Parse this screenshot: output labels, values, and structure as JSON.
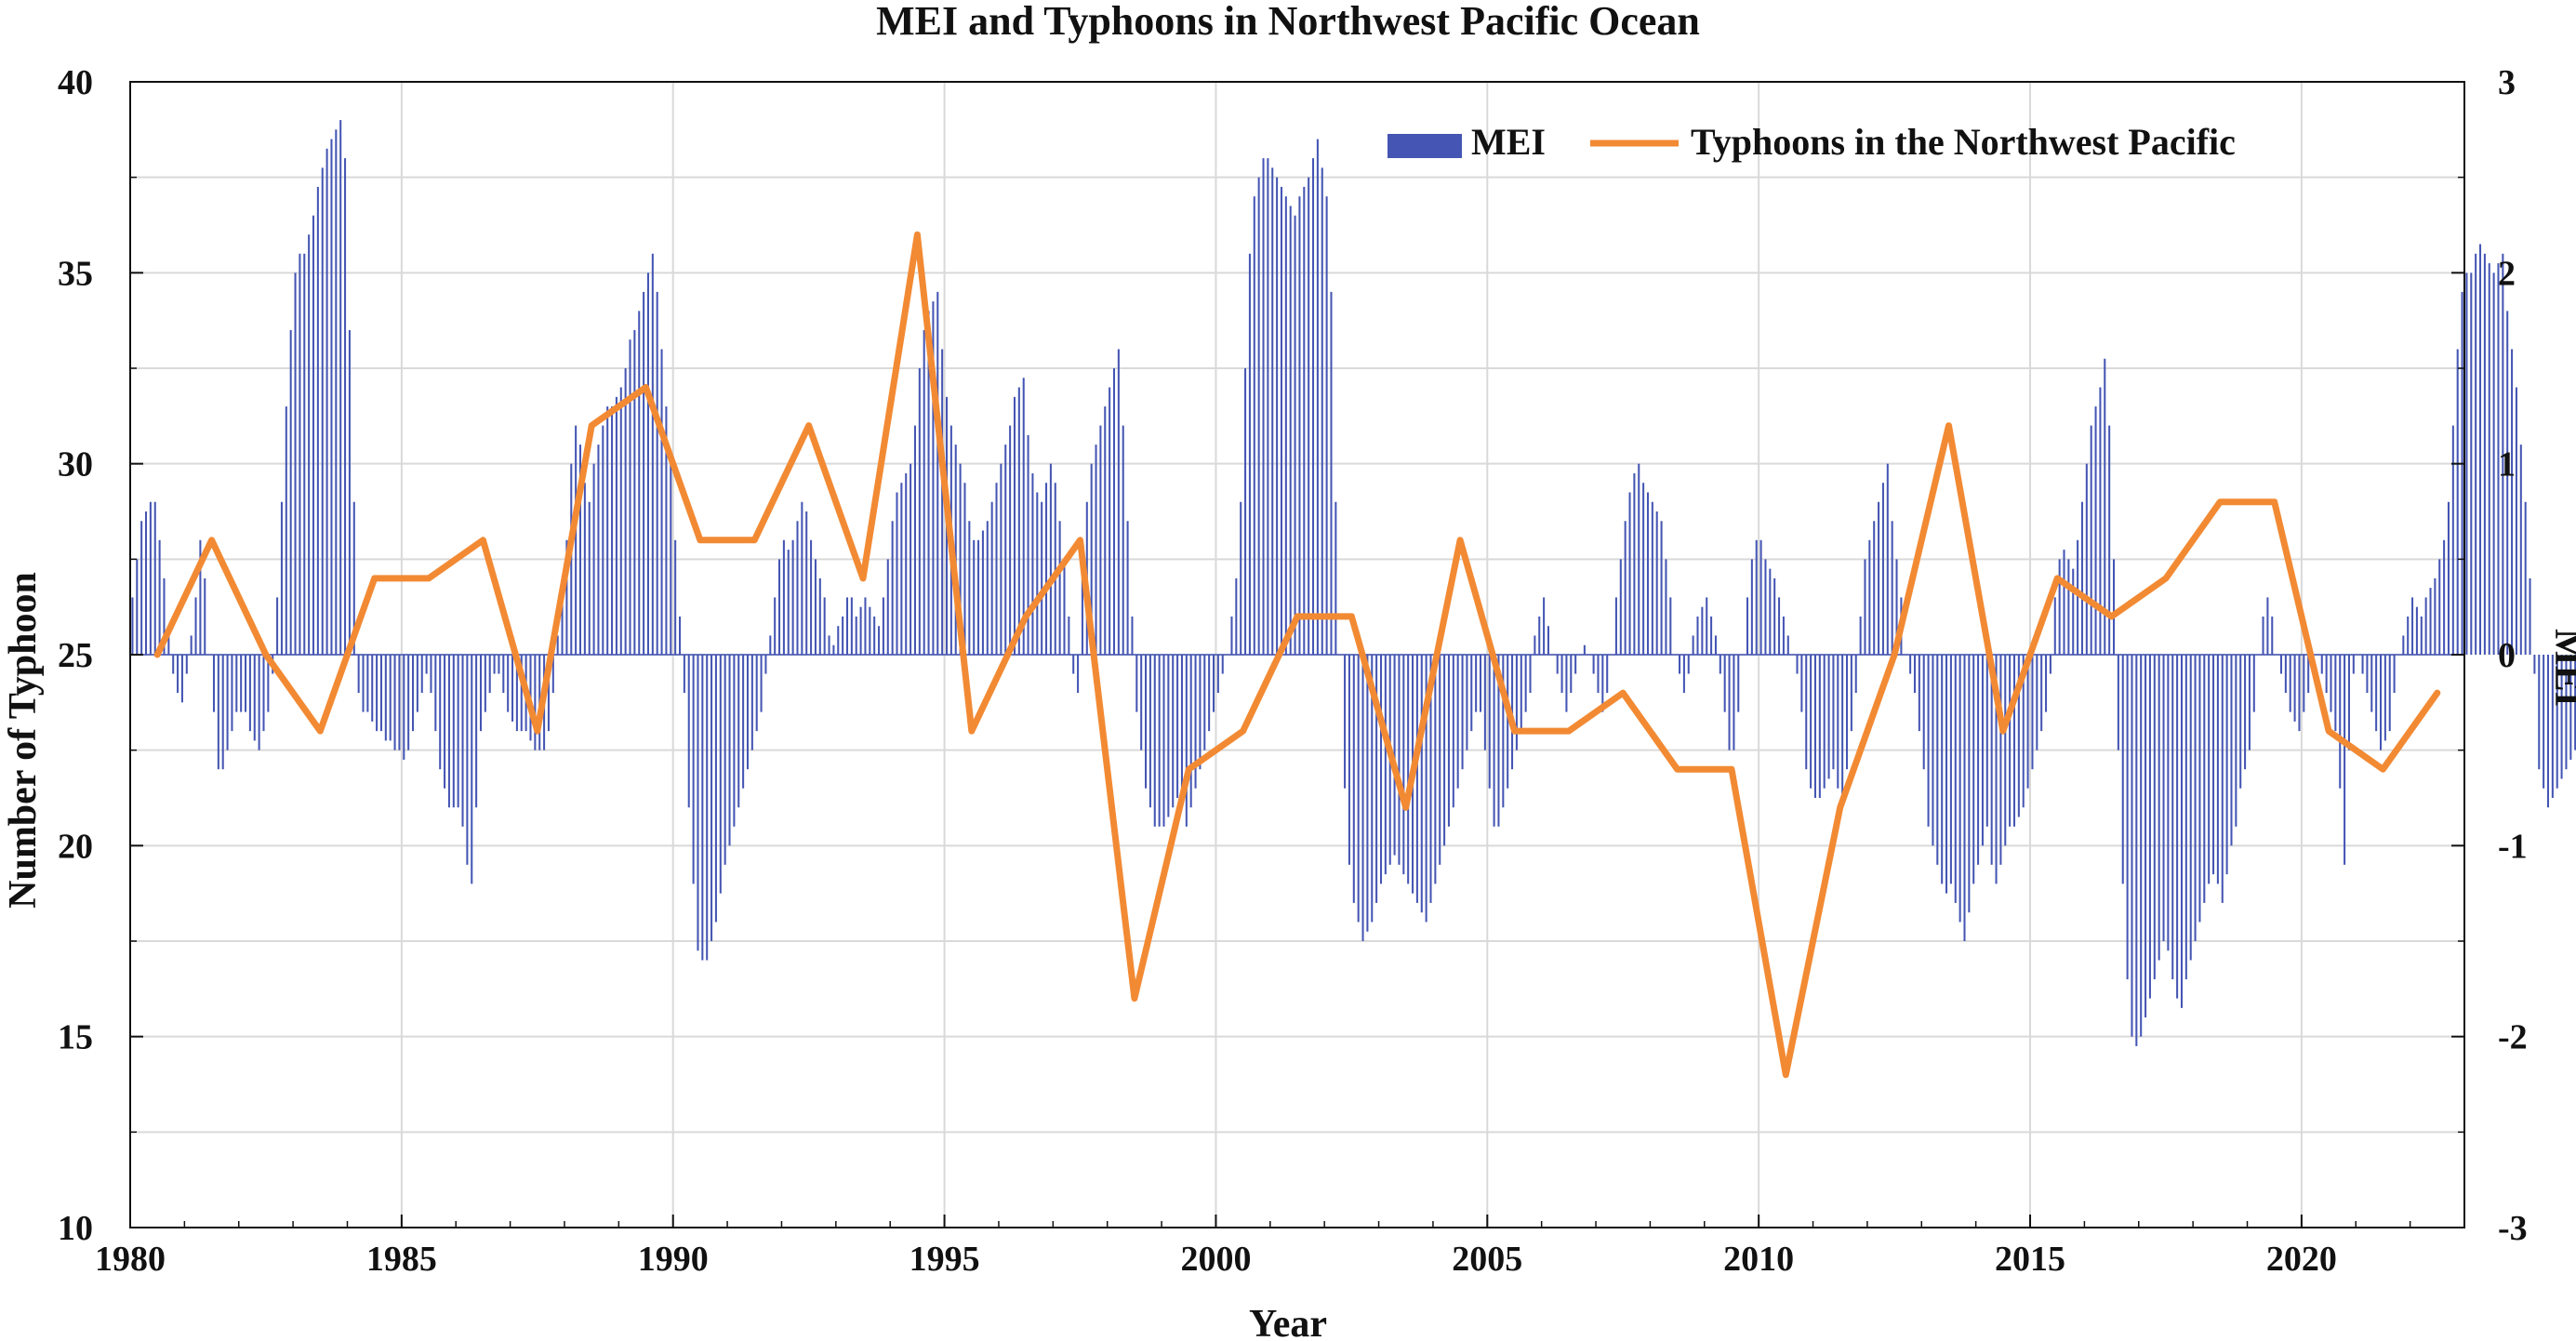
{
  "chart_data": {
    "type": "bar+line",
    "title": "MEI and Typhoons in Northwest Pacific Ocean",
    "xlabel": "Year",
    "ylabel_left": "Number of Typhoon",
    "ylabel_right": "MEI",
    "xlim": [
      1980,
      2023
    ],
    "ylim_left": [
      10,
      40
    ],
    "ylim_right": [
      -3,
      3
    ],
    "x_ticks": [
      "1980",
      "1985",
      "1990",
      "1995",
      "2000",
      "2005",
      "2010",
      "2015",
      "2020"
    ],
    "y_left_ticks": [
      "10",
      "15",
      "20",
      "25",
      "30",
      "35",
      "40"
    ],
    "y_right_ticks": [
      "-3",
      "-2",
      "-1",
      "0",
      "1",
      "2",
      "3"
    ],
    "grid": true,
    "legend_position": "top-right",
    "legend": [
      "MEI",
      "Typhoons in the Northwest Pacific"
    ],
    "colors": {
      "mei": "#4455b3",
      "typhoon": "#f28a34",
      "grid": "#d9d9d9",
      "axis": "#111111"
    },
    "series": [
      {
        "name": "Typhoons in the Northwest Pacific",
        "axis": "left",
        "type": "line",
        "x": [
          1980.5,
          1981.5,
          1982.5,
          1983.5,
          1984.5,
          1985.5,
          1986.5,
          1987.5,
          1988.5,
          1989.5,
          1990.5,
          1991.5,
          1992.5,
          1993.5,
          1994.5,
          1995.5,
          1996.5,
          1997.5,
          1998.5,
          1999.5,
          2000.5,
          2001.5,
          2002.5,
          2003.5,
          2004.5,
          2005.5,
          2006.5,
          2007.5,
          2008.5,
          2009.5,
          2010.5,
          2011.5,
          2012.5,
          2013.5,
          2014.5,
          2015.5,
          2016.5,
          2017.5,
          2018.5,
          2019.5,
          2020.5,
          2021.5,
          2022.5
        ],
        "values": [
          25,
          28,
          25,
          23,
          27,
          27,
          28,
          23,
          31,
          32,
          28,
          28,
          31,
          27,
          36,
          23,
          26,
          28,
          16,
          22,
          23,
          26,
          26,
          21,
          28,
          23,
          23,
          24,
          22,
          22,
          14,
          21,
          25,
          31,
          23,
          27,
          26,
          27,
          29,
          29,
          23,
          22,
          24
        ]
      },
      {
        "name": "MEI",
        "axis": "right",
        "type": "bar",
        "resolution": "monthly",
        "x_start": 1980.0,
        "values": [
          0.3,
          0.5,
          0.7,
          0.75,
          0.8,
          0.8,
          0.6,
          0.4,
          0.1,
          -0.1,
          -0.2,
          -0.25,
          -0.1,
          0.1,
          0.3,
          0.6,
          0.4,
          0.0,
          -0.3,
          -0.6,
          -0.6,
          -0.5,
          -0.4,
          -0.3,
          -0.3,
          -0.3,
          -0.4,
          -0.45,
          -0.5,
          -0.4,
          -0.3,
          -0.1,
          0.3,
          0.8,
          1.3,
          1.7,
          2.0,
          2.1,
          2.1,
          2.2,
          2.3,
          2.45,
          2.55,
          2.65,
          2.7,
          2.75,
          2.8,
          2.6,
          1.7,
          0.8,
          -0.2,
          -0.3,
          -0.3,
          -0.35,
          -0.4,
          -0.4,
          -0.45,
          -0.45,
          -0.5,
          -0.5,
          -0.55,
          -0.5,
          -0.4,
          -0.3,
          -0.2,
          -0.1,
          -0.2,
          -0.4,
          -0.6,
          -0.7,
          -0.8,
          -0.8,
          -0.8,
          -0.9,
          -1.1,
          -1.2,
          -0.8,
          -0.4,
          -0.3,
          -0.2,
          -0.1,
          -0.1,
          -0.2,
          -0.3,
          -0.35,
          -0.4,
          -0.4,
          -0.4,
          -0.45,
          -0.5,
          -0.5,
          -0.5,
          -0.4,
          -0.2,
          0.1,
          0.3,
          0.6,
          1.0,
          1.2,
          1.1,
          0.9,
          0.8,
          1.0,
          1.1,
          1.2,
          1.3,
          1.3,
          1.35,
          1.4,
          1.5,
          1.65,
          1.7,
          1.8,
          1.9,
          2.0,
          2.1,
          1.9,
          1.6,
          1.3,
          1.0,
          0.6,
          0.2,
          -0.2,
          -0.8,
          -1.2,
          -1.55,
          -1.6,
          -1.6,
          -1.5,
          -1.4,
          -1.25,
          -1.1,
          -1.0,
          -0.9,
          -0.8,
          -0.7,
          -0.6,
          -0.5,
          -0.4,
          -0.3,
          -0.1,
          0.1,
          0.3,
          0.5,
          0.6,
          0.55,
          0.6,
          0.7,
          0.8,
          0.75,
          0.6,
          0.5,
          0.4,
          0.3,
          0.1,
          0.05,
          0.15,
          0.2,
          0.3,
          0.3,
          0.2,
          0.25,
          0.3,
          0.25,
          0.2,
          0.15,
          0.3,
          0.5,
          0.7,
          0.85,
          0.9,
          0.95,
          1.0,
          1.2,
          1.5,
          1.7,
          1.8,
          1.85,
          1.9,
          1.6,
          1.35,
          1.2,
          1.1,
          1.0,
          0.9,
          0.7,
          0.6,
          0.6,
          0.65,
          0.7,
          0.8,
          0.9,
          1.0,
          1.1,
          1.2,
          1.35,
          1.4,
          1.45,
          1.15,
          0.95,
          0.85,
          0.8,
          0.9,
          1.0,
          0.9,
          0.7,
          0.5,
          0.2,
          -0.1,
          -0.2,
          0.5,
          0.8,
          1.0,
          1.1,
          1.2,
          1.3,
          1.4,
          1.5,
          1.6,
          1.2,
          0.7,
          0.2,
          -0.3,
          -0.5,
          -0.7,
          -0.8,
          -0.9,
          -0.9,
          -0.9,
          -0.85,
          -0.8,
          -0.75,
          -0.8,
          -0.9,
          -0.8,
          -0.7,
          -0.6,
          -0.5,
          -0.4,
          -0.3,
          -0.2,
          -0.1,
          0.0,
          0.2,
          0.4,
          0.8,
          1.5,
          2.1,
          2.4,
          2.5,
          2.6,
          2.6,
          2.55,
          2.5,
          2.45,
          2.4,
          2.35,
          2.3,
          2.4,
          2.45,
          2.5,
          2.6,
          2.7,
          2.55,
          2.4,
          1.9,
          0.8,
          0.0,
          -0.7,
          -1.1,
          -1.3,
          -1.4,
          -1.5,
          -1.45,
          -1.4,
          -1.3,
          -1.2,
          -1.15,
          -1.1,
          -1.05,
          -1.1,
          -1.15,
          -1.2,
          -1.25,
          -1.3,
          -1.35,
          -1.4,
          -1.3,
          -1.2,
          -1.1,
          -1.0,
          -0.9,
          -0.8,
          -0.7,
          -0.6,
          -0.5,
          -0.4,
          -0.3,
          -0.3,
          -0.5,
          -0.7,
          -0.9,
          -0.9,
          -0.8,
          -0.7,
          -0.6,
          -0.5,
          -0.4,
          -0.3,
          -0.2,
          0.1,
          0.2,
          0.3,
          0.15,
          0.0,
          -0.1,
          -0.2,
          -0.3,
          -0.2,
          -0.1,
          0.0,
          0.05,
          0.0,
          -0.1,
          -0.2,
          -0.3,
          -0.2,
          0.0,
          0.3,
          0.5,
          0.7,
          0.85,
          0.95,
          1.0,
          0.9,
          0.85,
          0.8,
          0.75,
          0.7,
          0.5,
          0.3,
          0.0,
          -0.1,
          -0.2,
          -0.1,
          0.1,
          0.2,
          0.25,
          0.3,
          0.2,
          0.1,
          -0.1,
          -0.3,
          -0.5,
          -0.5,
          -0.3,
          0.0,
          0.3,
          0.5,
          0.6,
          0.6,
          0.5,
          0.45,
          0.4,
          0.3,
          0.2,
          0.1,
          0.0,
          -0.1,
          -0.3,
          -0.6,
          -0.7,
          -0.75,
          -0.75,
          -0.7,
          -0.65,
          -0.6,
          -0.7,
          -0.8,
          -0.6,
          -0.4,
          -0.2,
          0.2,
          0.5,
          0.6,
          0.7,
          0.8,
          0.9,
          1.0,
          0.7,
          0.5,
          0.3,
          0.0,
          -0.1,
          -0.2,
          -0.4,
          -0.6,
          -0.9,
          -1.0,
          -1.1,
          -1.2,
          -1.25,
          -1.2,
          -1.3,
          -1.4,
          -1.5,
          -1.35,
          -1.2,
          -1.1,
          -1.0,
          -0.9,
          -1.1,
          -1.2,
          -1.1,
          -1.0,
          -0.9,
          -0.9,
          -0.85,
          -0.8,
          -0.7,
          -0.6,
          -0.5,
          -0.4,
          -0.3,
          -0.1,
          0.3,
          0.5,
          0.55,
          0.5,
          0.45,
          0.6,
          0.8,
          1.0,
          1.2,
          1.3,
          1.4,
          1.55,
          1.2,
          0.5,
          -0.5,
          -1.2,
          -1.7,
          -2.0,
          -2.05,
          -2.0,
          -1.9,
          -1.8,
          -1.7,
          -1.6,
          -1.5,
          -1.55,
          -1.7,
          -1.8,
          -1.85,
          -1.7,
          -1.6,
          -1.5,
          -1.4,
          -1.3,
          -1.2,
          -1.15,
          -1.2,
          -1.3,
          -1.15,
          -1.0,
          -0.9,
          -0.7,
          -0.6,
          -0.5,
          -0.3,
          0.0,
          0.2,
          0.3,
          0.2,
          0.0,
          -0.1,
          -0.2,
          -0.3,
          -0.35,
          -0.4,
          -0.3,
          -0.2,
          -0.1,
          0.0,
          -0.1,
          -0.2,
          -0.3,
          -0.4,
          -0.7,
          -1.1,
          -0.5,
          -0.1,
          0.0,
          -0.1,
          -0.2,
          -0.3,
          -0.4,
          -0.5,
          -0.45,
          -0.4,
          -0.2,
          0.0,
          0.1,
          0.2,
          0.3,
          0.25,
          0.2,
          0.3,
          0.35,
          0.4,
          0.5,
          0.6,
          0.8,
          1.2,
          1.6,
          1.9,
          2.0,
          2.0,
          2.1,
          2.15,
          2.1,
          2.05,
          2.0,
          2.05,
          2.1,
          1.8,
          1.6,
          1.4,
          1.1,
          0.8,
          0.4,
          -0.1,
          -0.6,
          -0.7,
          -0.8,
          -0.75,
          -0.7,
          -0.65,
          -0.6,
          -0.55,
          -0.5,
          -0.6,
          -0.7,
          -0.6,
          -0.4,
          -0.2,
          0.0,
          0.2,
          0.3,
          0.1,
          -0.3,
          -0.6,
          -0.7,
          -0.75,
          -0.8,
          -0.85,
          -0.9,
          -1.0,
          -0.9,
          -0.7,
          -0.5,
          -0.2,
          0.2,
          0.4,
          0.5,
          0.6,
          0.55,
          0.5,
          0.4,
          0.2,
          0.1,
          0.1,
          0.3,
          0.5,
          0.7,
          0.8,
          0.7,
          0.5,
          0.3,
          0.2,
          0.25,
          0.3,
          0.35,
          0.4,
          0.3,
          0.2,
          0.15,
          0.1,
          0.2,
          0.3,
          0.35,
          0.4,
          0.3,
          0.2,
          0.0,
          -0.2,
          -0.5,
          -0.8,
          -1.0,
          -1.1,
          -1.1,
          -1.05,
          -1.0,
          -1.05,
          -1.1,
          -1.15,
          -1.2,
          -1.1,
          -1.0,
          -0.9,
          -0.9,
          -1.0,
          -1.1,
          -1.2,
          -1.3,
          -1.4,
          -1.5,
          -1.45,
          -1.4,
          -1.35,
          -1.3,
          -1.25,
          -1.2,
          -1.1,
          -1.0,
          -1.05,
          -1.1,
          -1.2,
          -1.35,
          -1.5,
          -1.6,
          -1.8,
          -2.0,
          -2.2,
          -2.1
        ]
      }
    ]
  }
}
